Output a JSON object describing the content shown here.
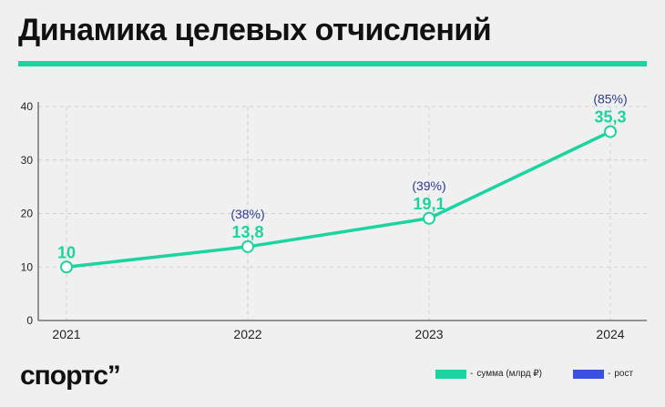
{
  "title": "Динамика целевых отчислений",
  "brand": {
    "name": "спортс",
    "mark": "’’"
  },
  "colors": {
    "accent": "#1dd3a0",
    "growth": "#3b4fe0",
    "growth_text": "#2b3c8c",
    "axis": "#333333",
    "grid": "#cfcfcf"
  },
  "legend": [
    {
      "label": "сумма (млрд ₽)",
      "color": "#1dd3a0",
      "dash": "-"
    },
    {
      "label": "рост",
      "color": "#3b4fe0",
      "dash": "-"
    }
  ],
  "chart_data": {
    "type": "line",
    "x": [
      "2021",
      "2022",
      "2023",
      "2024"
    ],
    "ylim": [
      0,
      40
    ],
    "yticks": [
      "0",
      "10",
      "20",
      "30",
      "40"
    ],
    "grid": true,
    "legend_position": "bottom-right",
    "series": [
      {
        "name": "сумма (млрд ₽)",
        "values": [
          10,
          13.8,
          19.1,
          35.3
        ],
        "labels": [
          "10",
          "13,8",
          "19,1",
          "35,3"
        ]
      },
      {
        "name": "рост",
        "labels": [
          "",
          "(38%)",
          "(39%)",
          "(85%)"
        ]
      }
    ]
  }
}
